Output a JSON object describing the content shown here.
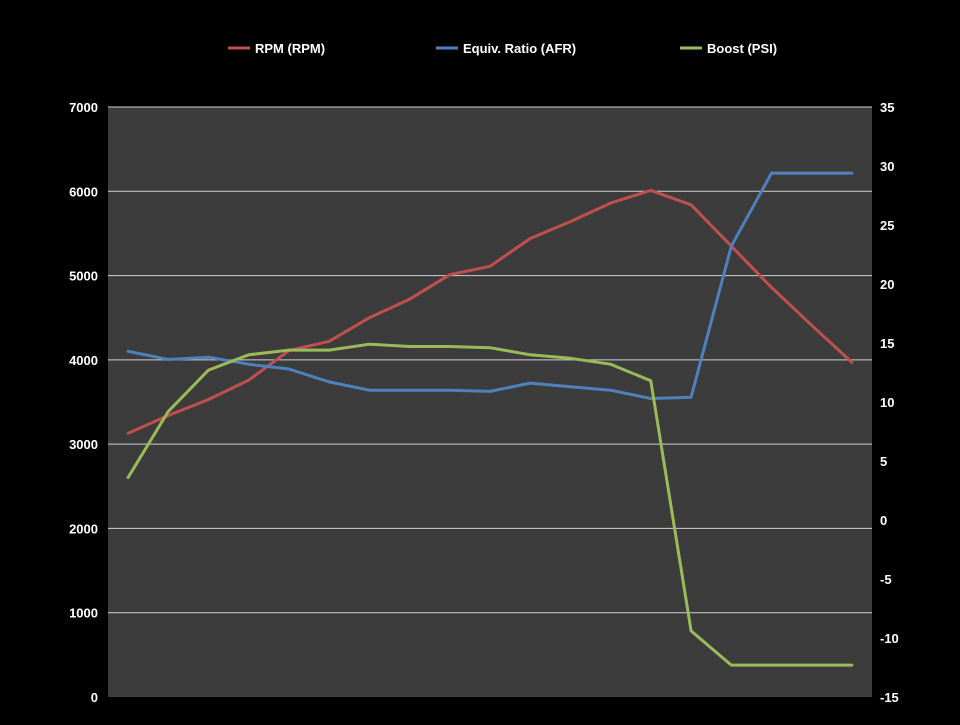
{
  "chart_data": {
    "type": "line",
    "title": "",
    "xlabel": "",
    "ylabel": "",
    "grid": true,
    "legend_position": "top",
    "colors": {
      "background": "#000000",
      "plot_area": "#3c3c3c",
      "gridline": "#d0d0d0"
    },
    "left_axis": {
      "ylim": [
        0,
        7000
      ],
      "ticks": [
        "0",
        "1000",
        "2000",
        "3000",
        "4000",
        "5000",
        "6000",
        "7000"
      ],
      "tick_values": [
        0,
        1000,
        2000,
        3000,
        4000,
        5000,
        6000,
        7000
      ]
    },
    "right_axis": {
      "ylim": [
        -15,
        35
      ],
      "ticks": [
        "-15",
        "-10",
        "-5",
        "0",
        "5",
        "10",
        "15",
        "20",
        "25",
        "30",
        "35"
      ],
      "tick_values": [
        -15,
        -10,
        -5,
        0,
        5,
        10,
        15,
        20,
        25,
        30,
        35
      ]
    },
    "x": [
      1,
      2,
      3,
      4,
      5,
      6,
      7,
      8,
      9,
      10,
      11,
      12,
      13,
      14,
      15,
      16,
      17,
      18,
      19
    ],
    "series": [
      {
        "name": "RPM (RPM)",
        "axis": "left",
        "color": "#c0504d",
        "values": [
          3130,
          3340,
          3530,
          3760,
          4110,
          4220,
          4500,
          4720,
          5010,
          5110,
          5440,
          5640,
          5860,
          6010,
          5840,
          5350,
          4860,
          4410,
          3970
        ]
      },
      {
        "name": "Equiv. Ratio (AFR)",
        "axis": "right",
        "color": "#4f81bd",
        "values": [
          14.3,
          13.6,
          13.8,
          13.2,
          12.8,
          11.7,
          11.0,
          11.0,
          11.0,
          10.9,
          11.6,
          11.3,
          11.0,
          10.3,
          10.4,
          23.2,
          29.4,
          29.4,
          29.4
        ]
      },
      {
        "name": "Boost (PSI)",
        "axis": "right",
        "color": "#9bbb59",
        "values": [
          3.6,
          9.2,
          12.7,
          14.0,
          14.4,
          14.4,
          14.9,
          14.7,
          14.7,
          14.6,
          14.0,
          13.7,
          13.2,
          11.8,
          -9.4,
          -12.3,
          -12.3,
          -12.3,
          -12.3
        ]
      }
    ]
  }
}
